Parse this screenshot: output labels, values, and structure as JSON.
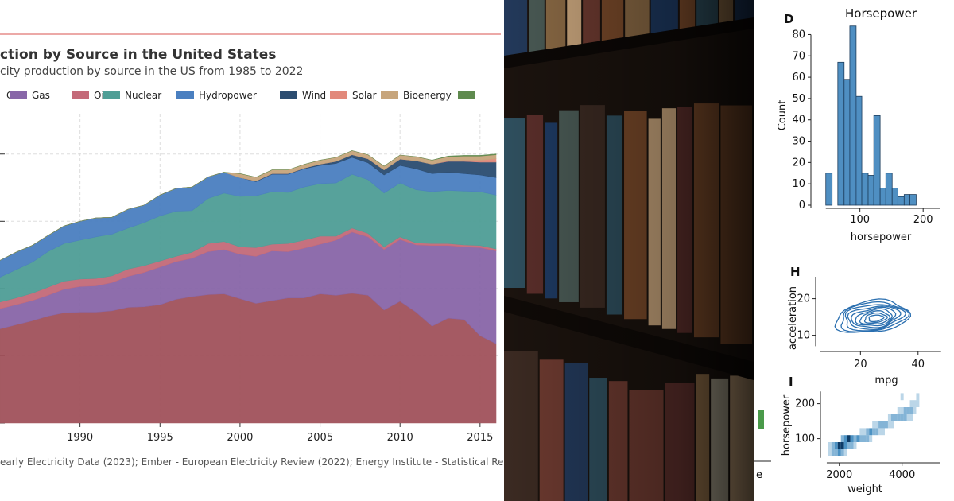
{
  "left_panel": {
    "title": "ction by Source in the United States",
    "subtitle": "city production by source in the US from 1985 to 2022",
    "source_note": "early Electricity Data (2023); Ember - European Electricity Review (2022); Energy Institute - Statistical Revie",
    "colors": {
      "Coal": "#a1525b",
      "Gas": "#8866a8",
      "Oil": "#c46a79",
      "Nuclear": "#4f9e96",
      "Hydropower": "#4a7fc0",
      "Wind": "#2b4c70",
      "Solar": "#e2897b",
      "Bioenergy": "#c7a57c",
      "Other": "#5f8a4e"
    }
  },
  "chart_data": [
    {
      "type": "area",
      "title": "ction by Source in the United States",
      "subtitle": "city production by source in the US from 1985 to 2022",
      "x": [
        1985,
        1986,
        1987,
        1988,
        1989,
        1990,
        1991,
        1992,
        1993,
        1994,
        1995,
        1996,
        1997,
        1998,
        1999,
        2000,
        2001,
        2002,
        2003,
        2004,
        2005,
        2006,
        2007,
        2008,
        2009,
        2010,
        2011,
        2012,
        2013,
        2014,
        2015,
        2016
      ],
      "x_ticks": [
        "1990",
        "1995",
        "2000",
        "2005",
        "2010",
        "2015"
      ],
      "xlim": [
        1985,
        2016.3
      ],
      "ylim": [
        0,
        4600
      ],
      "stacked": true,
      "legend": [
        "Coal",
        "Gas",
        "Oil",
        "Nuclear",
        "Hydropower",
        "Wind",
        "Solar",
        "Bioenergy"
      ],
      "legend_placement": "top",
      "series": [
        {
          "name": "Coal",
          "values": [
            1400,
            1460,
            1520,
            1590,
            1640,
            1650,
            1650,
            1670,
            1720,
            1730,
            1760,
            1840,
            1880,
            1910,
            1920,
            1850,
            1780,
            1820,
            1860,
            1860,
            1920,
            1900,
            1930,
            1900,
            1680,
            1810,
            1650,
            1440,
            1560,
            1540,
            1300,
            1180
          ]
        },
        {
          "name": "Gas",
          "values": [
            300,
            300,
            300,
            310,
            350,
            380,
            390,
            420,
            460,
            510,
            560,
            560,
            570,
            640,
            660,
            660,
            700,
            740,
            690,
            740,
            740,
            820,
            910,
            870,
            900,
            920,
            1000,
            1200,
            1080,
            1080,
            1310,
            1380
          ]
        },
        {
          "name": "Oil",
          "values": [
            100,
            100,
            110,
            120,
            120,
            110,
            110,
            100,
            110,
            100,
            90,
            80,
            90,
            120,
            120,
            110,
            130,
            100,
            120,
            120,
            120,
            60,
            60,
            50,
            40,
            40,
            30,
            30,
            30,
            30,
            30,
            30
          ]
        },
        {
          "name": "Nuclear",
          "values": [
            370,
            420,
            460,
            530,
            560,
            580,
            620,
            620,
            610,
            640,
            670,
            670,
            620,
            670,
            720,
            750,
            770,
            780,
            760,
            790,
            780,
            790,
            800,
            800,
            800,
            800,
            790,
            770,
            790,
            800,
            800,
            800
          ]
        },
        {
          "name": "Hydropower",
          "values": [
            250,
            260,
            250,
            240,
            260,
            280,
            280,
            250,
            280,
            260,
            310,
            340,
            350,
            320,
            310,
            280,
            210,
            260,
            270,
            270,
            270,
            290,
            250,
            250,
            270,
            260,
            310,
            270,
            270,
            260,
            250,
            260
          ]
        },
        {
          "name": "Wind",
          "values": [
            0,
            0,
            0,
            0,
            0,
            0,
            0,
            0,
            0,
            0,
            0,
            0,
            0,
            0,
            0,
            0,
            10,
            10,
            10,
            10,
            20,
            30,
            40,
            60,
            75,
            95,
            120,
            140,
            160,
            180,
            190,
            230
          ]
        },
        {
          "name": "Solar",
          "values": [
            0,
            0,
            0,
            0,
            0,
            0,
            0,
            0,
            0,
            0,
            0,
            0,
            0,
            0,
            0,
            0,
            0,
            0,
            0,
            0,
            0,
            0,
            0,
            0,
            0,
            0,
            0,
            0,
            10,
            20,
            30,
            50
          ]
        },
        {
          "name": "Bioenergy",
          "values": [
            0,
            0,
            0,
            0,
            0,
            0,
            0,
            0,
            0,
            0,
            0,
            0,
            0,
            0,
            0,
            60,
            55,
            55,
            55,
            55,
            60,
            60,
            60,
            60,
            55,
            60,
            60,
            60,
            60,
            60,
            60,
            60
          ]
        },
        {
          "name": "",
          "values": [
            0,
            0,
            0,
            0,
            0,
            0,
            0,
            0,
            0,
            0,
            0,
            0,
            0,
            0,
            0,
            0,
            0,
            0,
            0,
            0,
            0,
            0,
            0,
            0,
            0,
            0,
            0,
            0,
            10,
            10,
            10,
            10
          ]
        }
      ],
      "source": "early Electricity Data (2023); Ember - European Electricity Review (2022); Energy Institute - Statistical Revie",
      "grid": true
    },
    {
      "type": "bar",
      "panel_label": "D",
      "title": "Horsepower",
      "xlabel": "horsepower",
      "ylabel": "Count",
      "bins": [
        [
          46,
          56
        ],
        [
          56,
          65
        ],
        [
          65,
          75
        ],
        [
          75,
          84
        ],
        [
          84,
          94
        ],
        [
          94,
          103
        ],
        [
          103,
          113
        ],
        [
          113,
          122
        ],
        [
          122,
          132
        ],
        [
          132,
          141
        ],
        [
          141,
          151
        ],
        [
          151,
          160
        ],
        [
          160,
          170
        ],
        [
          170,
          179
        ],
        [
          179,
          189
        ],
        [
          189,
          198
        ],
        [
          198,
          208
        ],
        [
          208,
          217
        ],
        [
          217,
          227
        ]
      ],
      "values": [
        15,
        0,
        67,
        59,
        84,
        51,
        15,
        14,
        42,
        8,
        15,
        8,
        4,
        5,
        5,
        0,
        0,
        0,
        0
      ],
      "x_ticks": [
        "100",
        "200"
      ],
      "y_ticks": [
        "0",
        "10",
        "20",
        "30",
        "40",
        "50",
        "60",
        "70",
        "80"
      ],
      "xlim": [
        30,
        240
      ],
      "ylim": [
        0,
        88
      ],
      "bar_color": "#4f8fc2"
    },
    {
      "type": "scatter",
      "subtype": "kde-contour",
      "panel_label": "H",
      "xlabel": "mpg",
      "ylabel": "acceleration",
      "x_ticks": [
        "20",
        "40"
      ],
      "y_ticks": [
        "10",
        "20"
      ],
      "xlim": [
        5,
        50
      ],
      "ylim": [
        6,
        26
      ],
      "center": [
        24,
        15
      ],
      "line_color": "#2a6fb0"
    },
    {
      "type": "heatmap",
      "panel_label": "I",
      "xlabel": "weight",
      "ylabel": "horsepower",
      "x_ticks": [
        "2000",
        "4000"
      ],
      "y_ticks": [
        "100",
        "200"
      ],
      "xlim": [
        1500,
        5300
      ],
      "ylim": [
        40,
        240
      ],
      "cells": [
        [
          1700,
          60,
          1
        ],
        [
          1800,
          60,
          2
        ],
        [
          1900,
          60,
          2
        ],
        [
          2000,
          60,
          3
        ],
        [
          2100,
          60,
          2
        ],
        [
          2200,
          60,
          1
        ],
        [
          1700,
          80,
          1
        ],
        [
          1800,
          80,
          2
        ],
        [
          1900,
          80,
          3
        ],
        [
          2000,
          80,
          4
        ],
        [
          2100,
          80,
          4
        ],
        [
          2200,
          80,
          3
        ],
        [
          2300,
          80,
          2
        ],
        [
          2400,
          80,
          2
        ],
        [
          2500,
          80,
          1
        ],
        [
          2100,
          100,
          2
        ],
        [
          2200,
          100,
          3
        ],
        [
          2300,
          100,
          4
        ],
        [
          2400,
          100,
          3
        ],
        [
          2500,
          100,
          2
        ],
        [
          2600,
          100,
          3
        ],
        [
          2700,
          100,
          2
        ],
        [
          2800,
          100,
          2
        ],
        [
          2900,
          100,
          2
        ],
        [
          3000,
          100,
          1
        ],
        [
          2700,
          120,
          1
        ],
        [
          2800,
          120,
          1
        ],
        [
          2900,
          120,
          2
        ],
        [
          3000,
          120,
          3
        ],
        [
          3100,
          120,
          2
        ],
        [
          3200,
          120,
          2
        ],
        [
          3300,
          120,
          1
        ],
        [
          3400,
          120,
          1
        ],
        [
          3100,
          140,
          1
        ],
        [
          3200,
          140,
          1
        ],
        [
          3300,
          140,
          2
        ],
        [
          3400,
          140,
          2
        ],
        [
          3500,
          140,
          2
        ],
        [
          3600,
          140,
          1
        ],
        [
          3700,
          140,
          1
        ],
        [
          3600,
          160,
          1
        ],
        [
          3700,
          160,
          2
        ],
        [
          3800,
          160,
          2
        ],
        [
          3900,
          160,
          2
        ],
        [
          4000,
          160,
          2
        ],
        [
          4100,
          160,
          2
        ],
        [
          4200,
          160,
          1
        ],
        [
          4300,
          160,
          1
        ],
        [
          3900,
          180,
          1
        ],
        [
          4000,
          180,
          1
        ],
        [
          4100,
          180,
          2
        ],
        [
          4200,
          180,
          2
        ],
        [
          4300,
          180,
          2
        ],
        [
          4400,
          180,
          1
        ],
        [
          4300,
          200,
          1
        ],
        [
          4400,
          200,
          1
        ],
        [
          4500,
          200,
          1
        ],
        [
          4000,
          220,
          1
        ],
        [
          4500,
          220,
          1
        ]
      ],
      "cell_color": "#1f77b4"
    }
  ],
  "photo": {
    "stub_text": "e"
  }
}
